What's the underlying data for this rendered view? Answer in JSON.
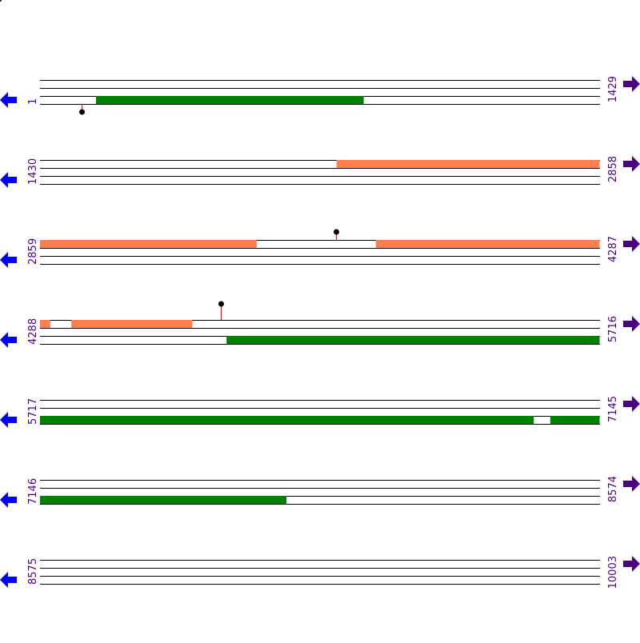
{
  "colors": {
    "line": "#000000",
    "orange": "#ff7f50",
    "green": "#008000",
    "marker_stem": "#ff0000",
    "marker_dot": "#000000",
    "left_arrow": "#0000ff",
    "right_arrow": "#4b0082",
    "label": "#4b0082"
  },
  "bp_per_row": 1429,
  "rows": [
    {
      "start": "1",
      "end": "1429",
      "start_bp": 1
    },
    {
      "start": "1430",
      "end": "2858",
      "start_bp": 1430
    },
    {
      "start": "2859",
      "end": "4287",
      "start_bp": 2859
    },
    {
      "start": "4288",
      "end": "5716",
      "start_bp": 4288
    },
    {
      "start": "5717",
      "end": "7145",
      "start_bp": 5717
    },
    {
      "start": "7146",
      "end": "8574",
      "start_bp": 7146
    },
    {
      "start": "8575",
      "end": "10003",
      "start_bp": 8575
    }
  ],
  "features": [
    {
      "row": 0,
      "track": 2,
      "from": 144,
      "to": 827,
      "color": "green"
    },
    {
      "row": 1,
      "track": 0,
      "from": 2187,
      "to": 2858,
      "color": "orange"
    },
    {
      "row": 2,
      "track": 0,
      "from": 2859,
      "to": 3412,
      "color": "orange"
    },
    {
      "row": 2,
      "track": 0,
      "from": 3716,
      "to": 4287,
      "color": "orange"
    },
    {
      "row": 3,
      "track": 0,
      "from": 4288,
      "to": 4314,
      "color": "orange"
    },
    {
      "row": 3,
      "track": 0,
      "from": 4368,
      "to": 4677,
      "color": "orange"
    },
    {
      "row": 3,
      "track": 2,
      "from": 4764,
      "to": 5716,
      "color": "green"
    },
    {
      "row": 4,
      "track": 2,
      "from": 5717,
      "to": 6977,
      "color": "green"
    },
    {
      "row": 4,
      "track": 2,
      "from": 7019,
      "to": 7145,
      "color": "green"
    },
    {
      "row": 5,
      "track": 2,
      "from": 7146,
      "to": 7775,
      "color": "green"
    }
  ],
  "markers": [
    {
      "row": 0,
      "pos": 107,
      "direction": "down",
      "stem": "short"
    },
    {
      "row": 2,
      "pos": 3614,
      "direction": "up",
      "stem": "short"
    },
    {
      "row": 3,
      "pos": 4749,
      "direction": "up",
      "stem": "long"
    }
  ],
  "icons": {
    "left": "arrow-left-icon",
    "right": "arrow-right-icon"
  }
}
